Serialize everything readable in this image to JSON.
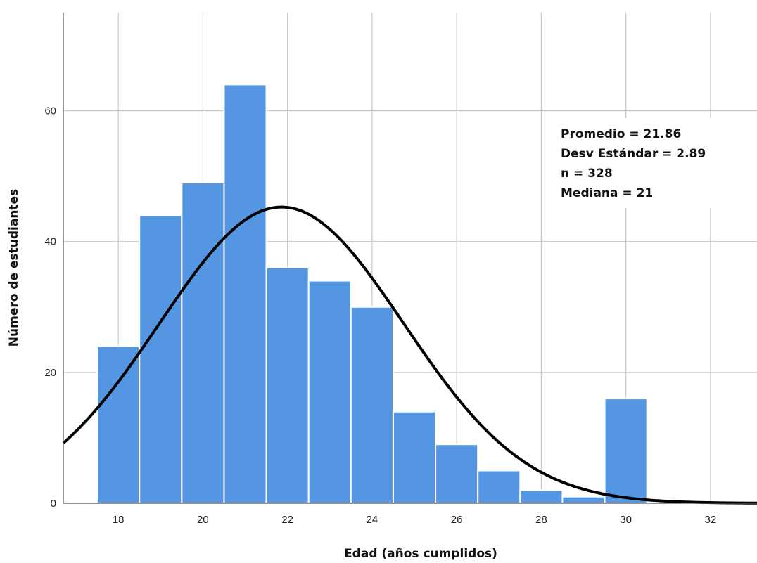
{
  "chart_data": {
    "type": "bar",
    "title": "",
    "xlabel": "Edad (años cumplidos)",
    "ylabel": "Número de estudiantes",
    "xlim": [
      16.7,
      33.1
    ],
    "ylim": [
      0,
      75
    ],
    "x_ticks": [
      18,
      20,
      22,
      24,
      26,
      28,
      30,
      32
    ],
    "y_ticks": [
      0,
      20,
      40,
      60
    ],
    "grid": true,
    "bin_width": 1,
    "bins": [
      {
        "x": 18,
        "value": 24
      },
      {
        "x": 19,
        "value": 44
      },
      {
        "x": 20,
        "value": 49
      },
      {
        "x": 21,
        "value": 64
      },
      {
        "x": 22,
        "value": 36
      },
      {
        "x": 23,
        "value": 34
      },
      {
        "x": 24,
        "value": 30
      },
      {
        "x": 25,
        "value": 14
      },
      {
        "x": 26,
        "value": 9
      },
      {
        "x": 27,
        "value": 5
      },
      {
        "x": 28,
        "value": 2
      },
      {
        "x": 29,
        "value": 1
      },
      {
        "x": 30,
        "value": 16
      }
    ],
    "normal_curve": {
      "mean": 21.86,
      "sd": 2.89,
      "n": 328
    },
    "stats_lines": [
      "Promedio = 21.86",
      "Desv Estándar = 2.89",
      "n = 328",
      "Mediana = 21"
    ],
    "colors": {
      "bar": "#5596e3",
      "curve": "#000000",
      "grid": "#c8c8c8"
    }
  }
}
